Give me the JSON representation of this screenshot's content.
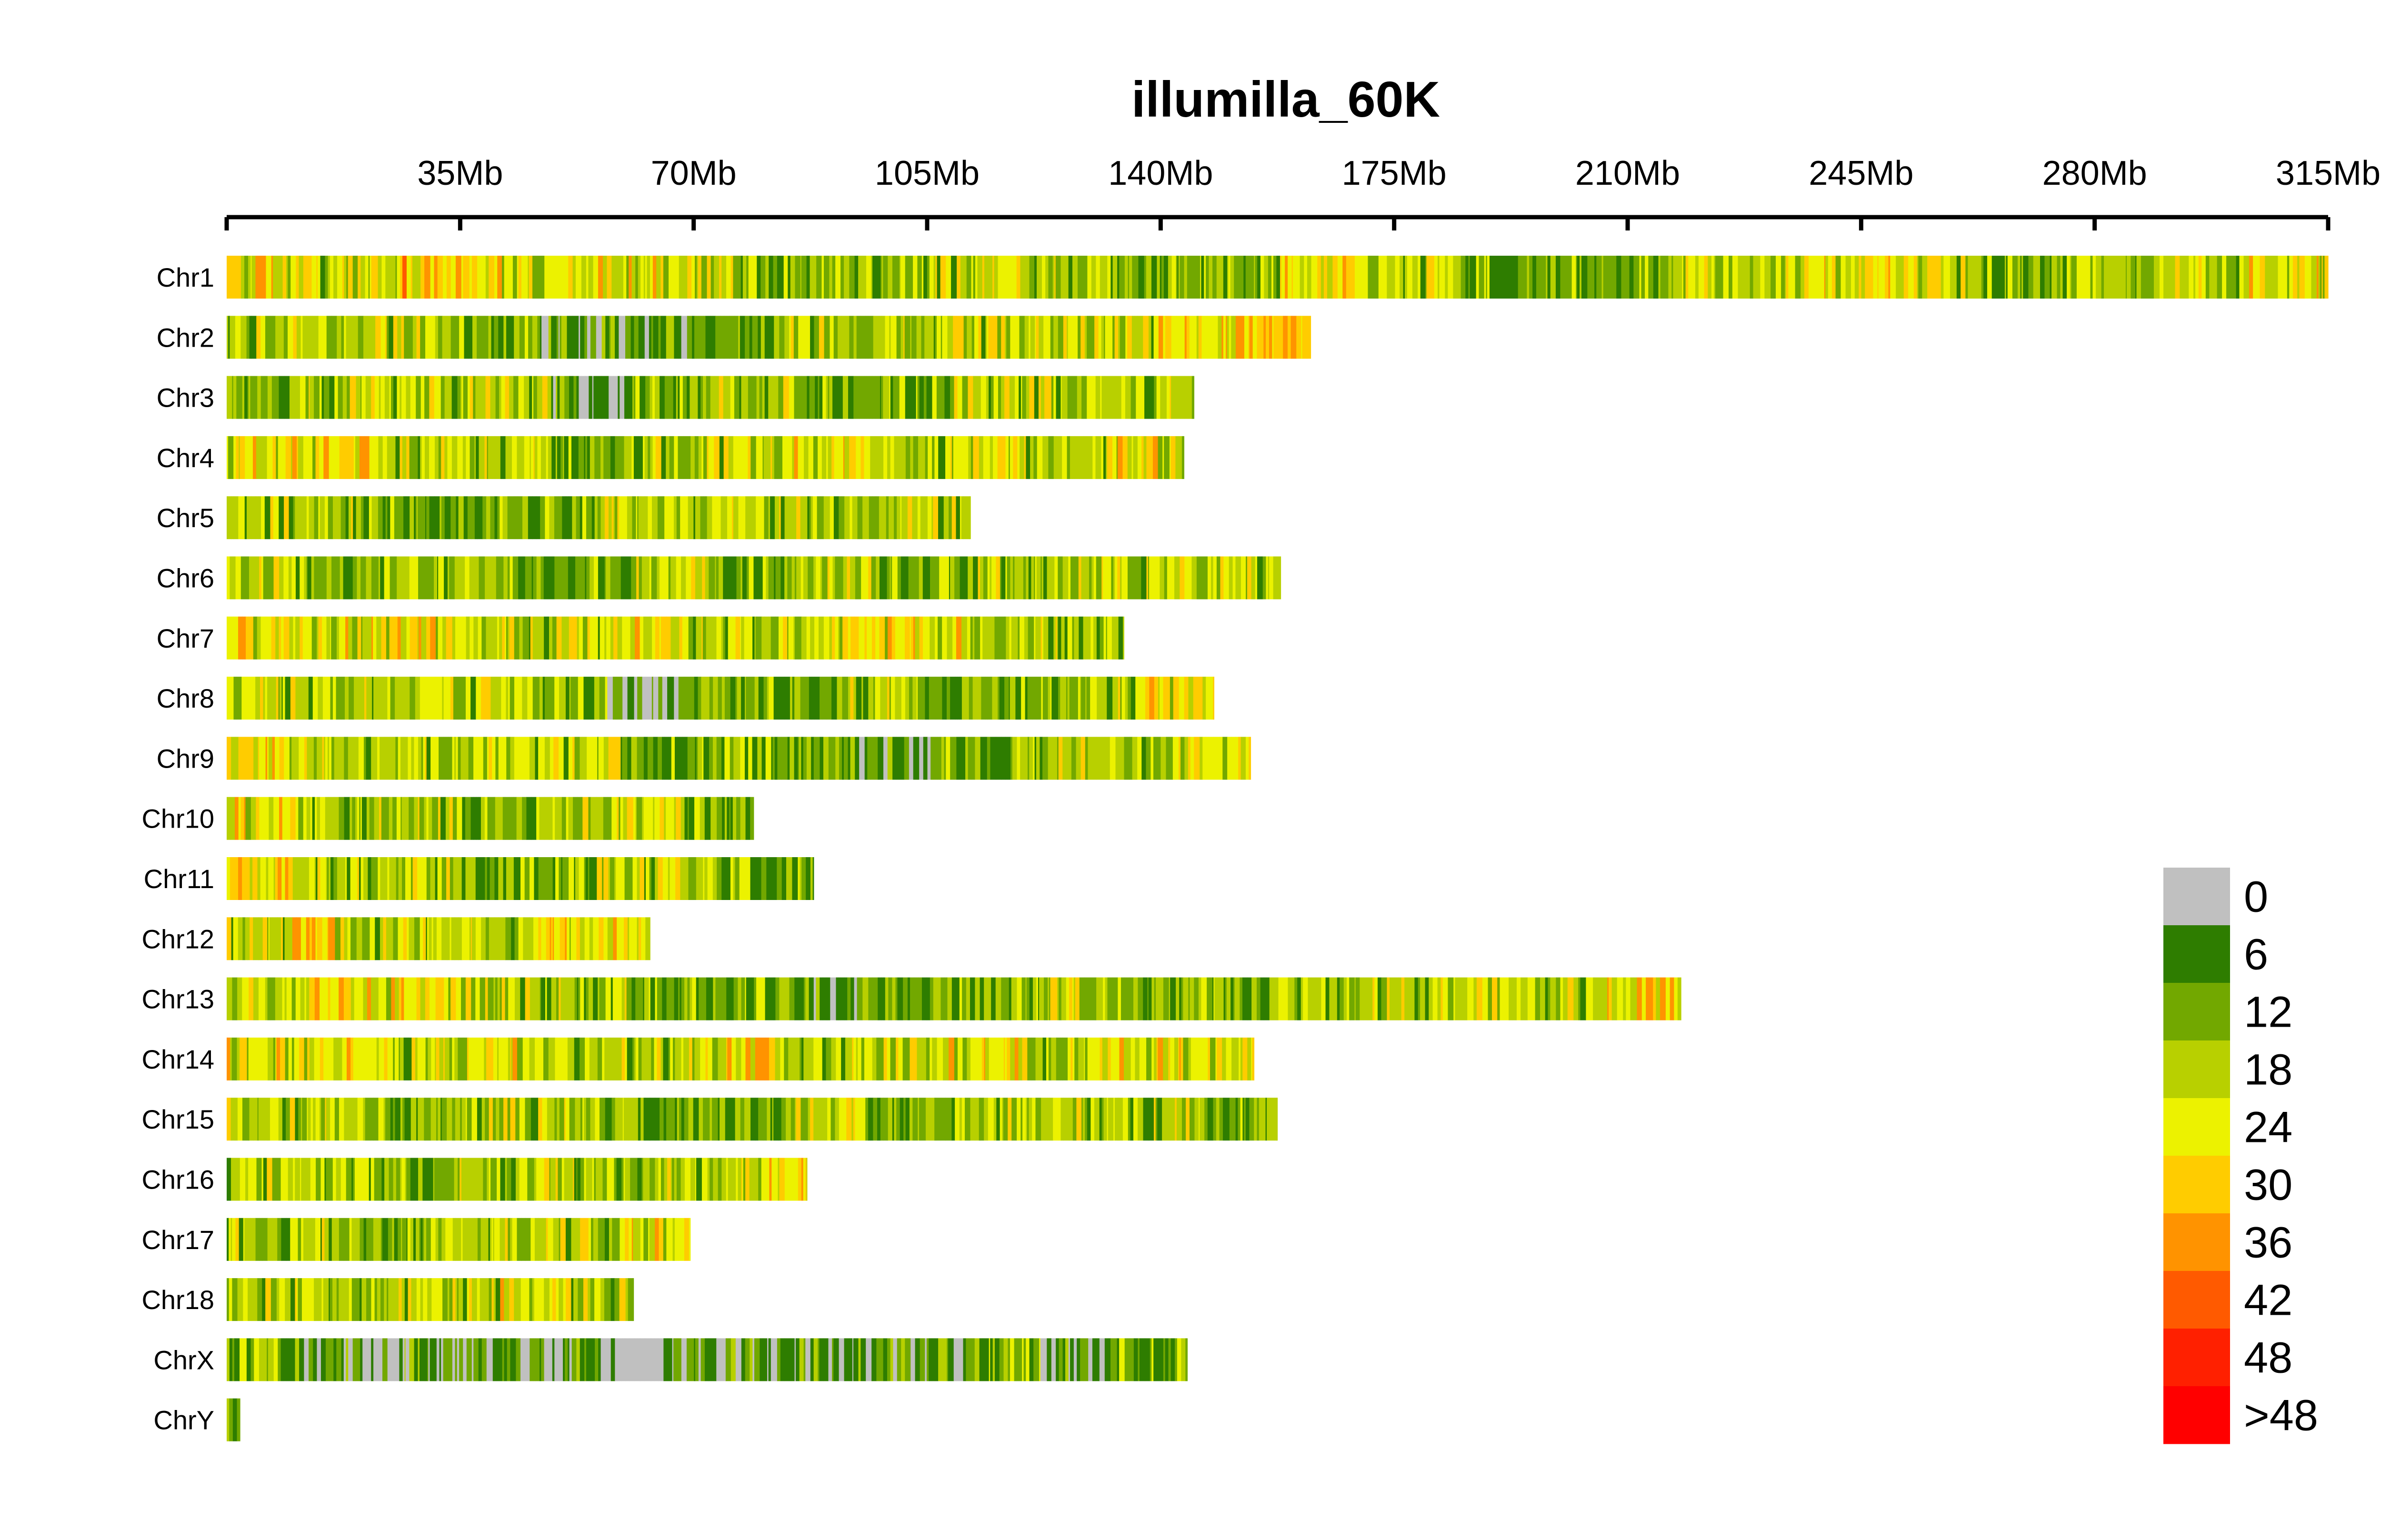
{
  "chart_data": {
    "type": "heatmap",
    "title": "illumilla_60K",
    "unit": "Mb",
    "x_axis": {
      "min": 0,
      "max": 315,
      "ticks": [
        0,
        35,
        70,
        105,
        140,
        175,
        210,
        245,
        280,
        315
      ],
      "tick_labels": [
        "",
        "35Mb",
        "70Mb",
        "105Mb",
        "140Mb",
        "175Mb",
        "210Mb",
        "245Mb",
        "280Mb",
        "315Mb"
      ]
    },
    "chromosomes": [
      {
        "name": "Chr1",
        "length_mb": 315
      },
      {
        "name": "Chr2",
        "length_mb": 162.5
      },
      {
        "name": "Chr3",
        "length_mb": 145
      },
      {
        "name": "Chr4",
        "length_mb": 143.5
      },
      {
        "name": "Chr5",
        "length_mb": 111.5
      },
      {
        "name": "Chr6",
        "length_mb": 158
      },
      {
        "name": "Chr7",
        "length_mb": 134.5
      },
      {
        "name": "Chr8",
        "length_mb": 148
      },
      {
        "name": "Chr9",
        "length_mb": 153.5
      },
      {
        "name": "Chr10",
        "length_mb": 79
      },
      {
        "name": "Chr11",
        "length_mb": 88
      },
      {
        "name": "Chr12",
        "length_mb": 63.5
      },
      {
        "name": "Chr13",
        "length_mb": 218
      },
      {
        "name": "Chr14",
        "length_mb": 154
      },
      {
        "name": "Chr15",
        "length_mb": 157.5
      },
      {
        "name": "Chr16",
        "length_mb": 87
      },
      {
        "name": "Chr17",
        "length_mb": 69.5
      },
      {
        "name": "Chr18",
        "length_mb": 61
      },
      {
        "name": "ChrX",
        "length_mb": 144
      },
      {
        "name": "ChrY",
        "length_mb": 2
      }
    ],
    "chromosome_profiles": {
      "Chr1": [
        4,
        3,
        5,
        4,
        4,
        3,
        2,
        2,
        3,
        3,
        2,
        2,
        4,
        3,
        2,
        2,
        3,
        3,
        4,
        3,
        2,
        3,
        3,
        4
      ],
      "Chr2": [
        3,
        3,
        3,
        2,
        1,
        1,
        2,
        3,
        3,
        3,
        3,
        3,
        4,
        5
      ],
      "Chr3": [
        2,
        3,
        3,
        3,
        1,
        2,
        3,
        2,
        2,
        3,
        3,
        3
      ],
      "Chr4": [
        4,
        4,
        3,
        3,
        2,
        3,
        3,
        4,
        3,
        4,
        3,
        4
      ],
      "Chr5": [
        3,
        3,
        2,
        2,
        2,
        3,
        3,
        3,
        3,
        3
      ],
      "Chr6": [
        3,
        2,
        3,
        2,
        2,
        3,
        2,
        3,
        2,
        3,
        3,
        3,
        3
      ],
      "Chr7": [
        4,
        4,
        4,
        3,
        3,
        4,
        3,
        3,
        4,
        4,
        3,
        3
      ],
      "Chr8": [
        3,
        3,
        3,
        3,
        2,
        1,
        2,
        2,
        3,
        2,
        2,
        3,
        4
      ],
      "Chr9": [
        4,
        3,
        3,
        3,
        3,
        2,
        2,
        2,
        1,
        2,
        3,
        3,
        4
      ],
      "Chr10": [
        4,
        3,
        3,
        2,
        3,
        3,
        2
      ],
      "Chr11": [
        4,
        3,
        3,
        2,
        2,
        3,
        3,
        2
      ],
      "Chr12": [
        3,
        4,
        3,
        3,
        3,
        4,
        4
      ],
      "Chr13": [
        3,
        4,
        4,
        3,
        3,
        2,
        2,
        1,
        2,
        2,
        3,
        2,
        2,
        3,
        3,
        3,
        3,
        4
      ],
      "Chr14": [
        4,
        4,
        3,
        4,
        3,
        3,
        4,
        3,
        3,
        4,
        3,
        4,
        4
      ],
      "Chr15": [
        3,
        3,
        2,
        3,
        3,
        2,
        2,
        3,
        2,
        3,
        3,
        3,
        2
      ],
      "Chr16": [
        3,
        3,
        2,
        3,
        3,
        2,
        3,
        4
      ],
      "Chr17": [
        3,
        3,
        2,
        3,
        3,
        3,
        4
      ],
      "Chr18": [
        3,
        3,
        3,
        3,
        4,
        3
      ],
      "ChrX": [
        2,
        1,
        1,
        1,
        1,
        0,
        1,
        1,
        1,
        1,
        2,
        1,
        2
      ],
      "ChrY": [
        1
      ]
    },
    "legend": {
      "labels": [
        "0",
        "6",
        "12",
        "18",
        "24",
        "30",
        "36",
        "42",
        "48",
        ">48"
      ],
      "colors": [
        "#c0c0c0",
        "#2e7d00",
        "#72a800",
        "#b8d000",
        "#ecf200",
        "#ffcc00",
        "#ff9300",
        "#ff5a00",
        "#ff2000",
        "#ff0000"
      ]
    }
  }
}
